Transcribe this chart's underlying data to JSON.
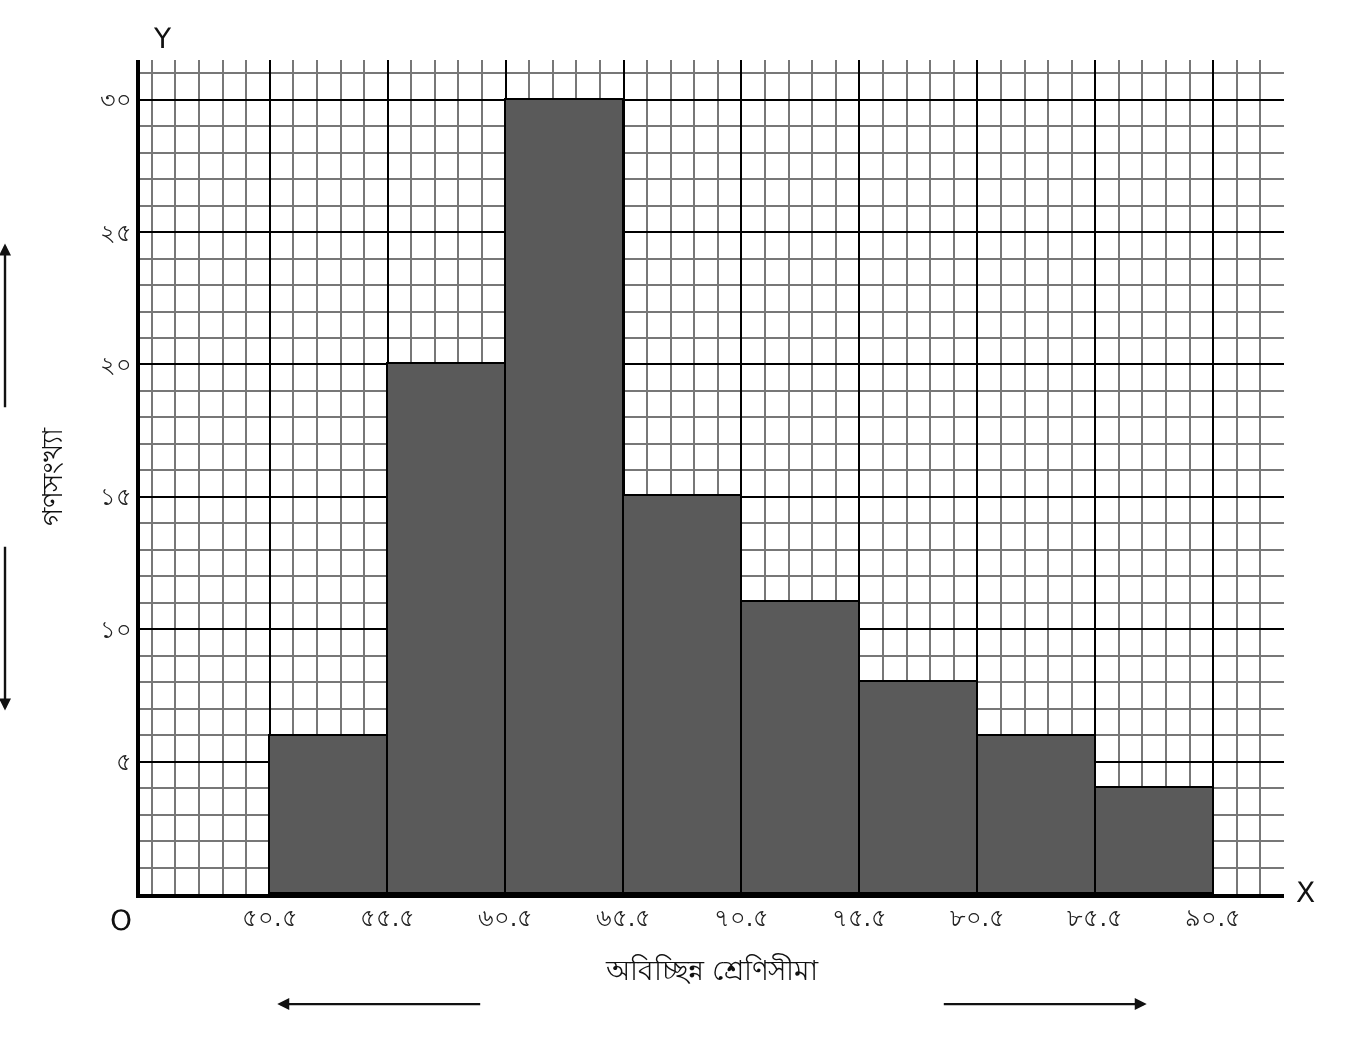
{
  "chart_data": {
    "type": "histogram",
    "xlabel": "অবিচ্ছিন্ন শ্রেণিসীমা",
    "ylabel": "গণসংখ্যা",
    "bins": [
      50.5,
      55.5,
      60.5,
      65.5,
      70.5,
      75.5,
      80.5,
      85.5,
      90.5
    ],
    "values": [
      6,
      20,
      30,
      15,
      11,
      8,
      6,
      4
    ],
    "color": "#5a5a5a",
    "xlim": [
      45,
      93.5
    ],
    "ylim": [
      0,
      31.5
    ],
    "xticks": [
      {
        "value": 50.5,
        "label": "৫০.৫"
      },
      {
        "value": 55.5,
        "label": "৫৫.৫"
      },
      {
        "value": 60.5,
        "label": "৬০.৫"
      },
      {
        "value": 65.5,
        "label": "৬৫.৫"
      },
      {
        "value": 70.5,
        "label": "৭০.৫"
      },
      {
        "value": 75.5,
        "label": "৭৫.৫"
      },
      {
        "value": 80.5,
        "label": "৮০.৫"
      },
      {
        "value": 85.5,
        "label": "৮৫.৫"
      },
      {
        "value": 90.5,
        "label": "৯০.৫"
      }
    ],
    "yticks": [
      {
        "value": 5,
        "label": "৫"
      },
      {
        "value": 10,
        "label": "১০"
      },
      {
        "value": 15,
        "label": "১৫"
      },
      {
        "value": 20,
        "label": "২০"
      },
      {
        "value": 25,
        "label": "২৫"
      },
      {
        "value": 30,
        "label": "৩০"
      }
    ],
    "grid": true,
    "annotations": [
      "O",
      "X",
      "Y"
    ]
  }
}
